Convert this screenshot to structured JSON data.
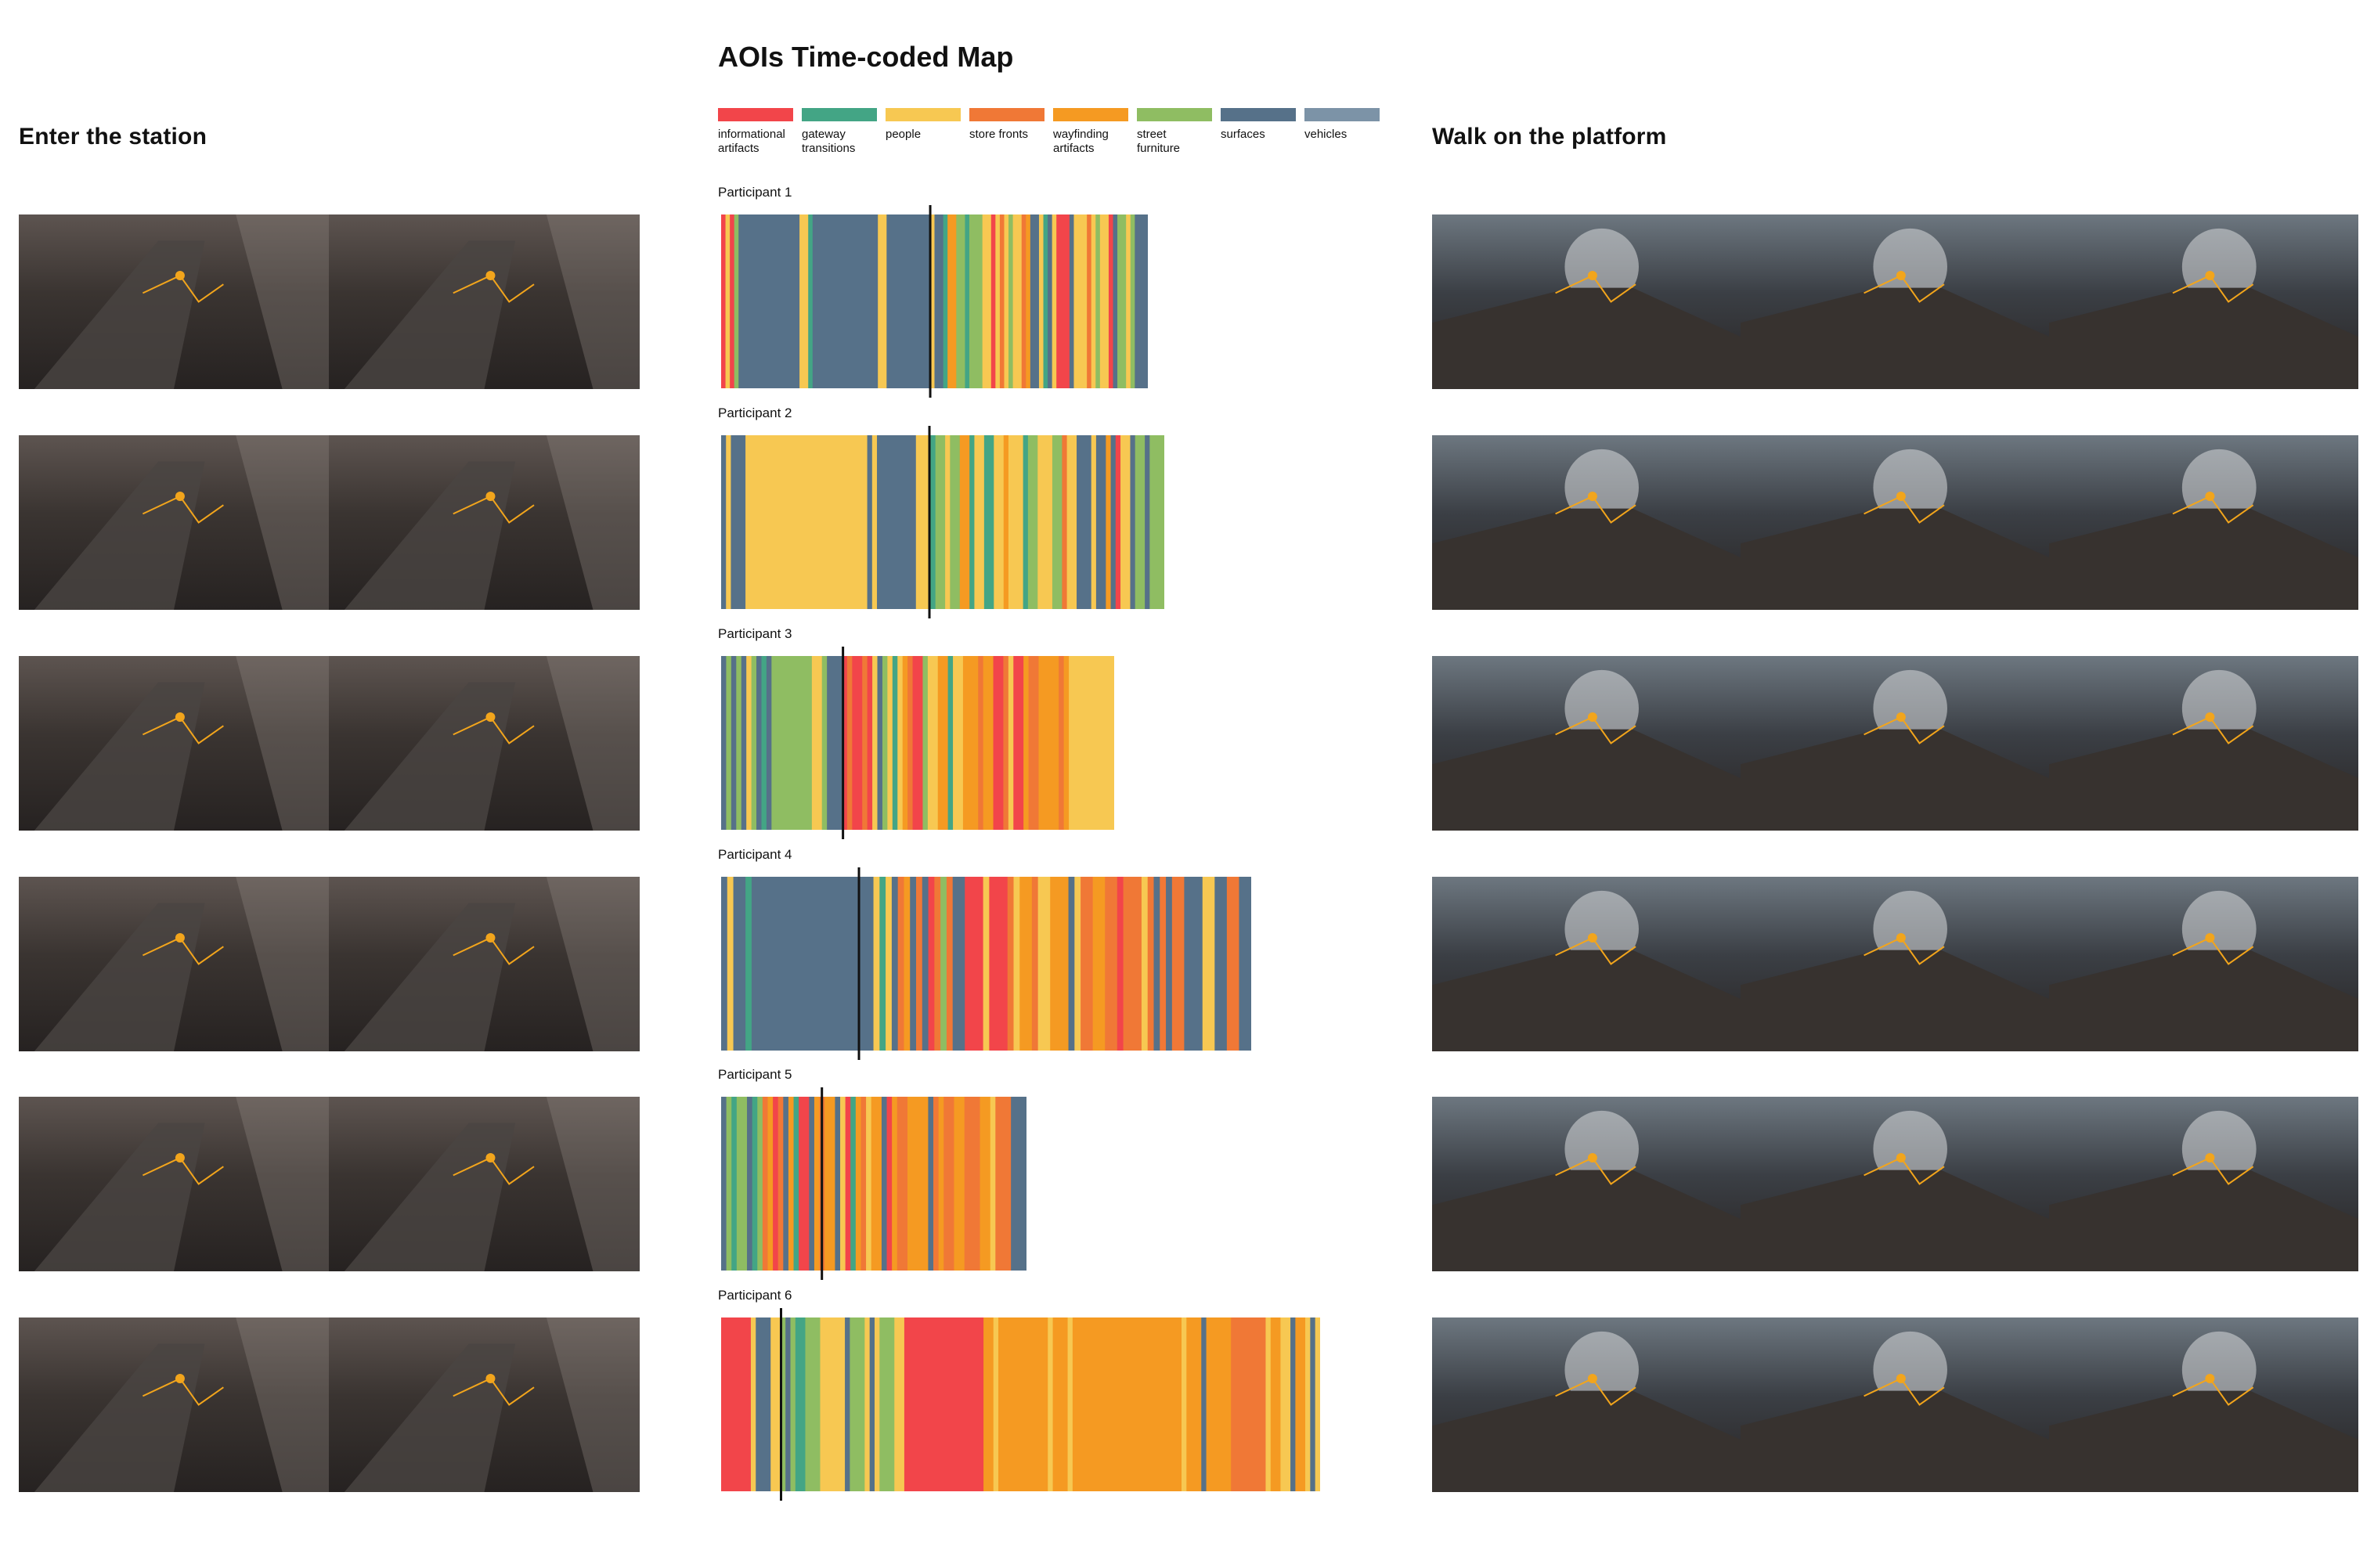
{
  "title": "AOIs Time-coded Map",
  "left_heading": "Enter the station",
  "right_heading": "Walk on the platform",
  "colors": {
    "IA": "#f2454a",
    "GT": "#43a585",
    "PE": "#f7c852",
    "SF": "#f07836",
    "WA": "#f59a22",
    "FU": "#8fbd62",
    "SU": "#567189",
    "VE": "#7c93a7"
  },
  "legend": [
    {
      "key": "IA",
      "label": "informational\nartifacts"
    },
    {
      "key": "GT",
      "label": "gateway\ntransitions"
    },
    {
      "key": "PE",
      "label": "people"
    },
    {
      "key": "SF",
      "label": "store fronts"
    },
    {
      "key": "WA",
      "label": "wayfinding\nartifacts"
    },
    {
      "key": "FU",
      "label": "street\nfurniture"
    },
    {
      "key": "SU",
      "label": "surfaces"
    },
    {
      "key": "VE",
      "label": "vehicles"
    }
  ],
  "chart_data": {
    "type": "bar",
    "title": "AOIs Time-coded Map",
    "series": [
      {
        "name": "Participant 1",
        "marker": 0.49,
        "sequence": "IA1 PE1 IA1 FU1 SU14 PE2 GT1 SU15 PE2 SU10 PE1 SU2 GT1 WA2 FU2 GT1 FU3 PE2 IA1 PE1 SF1 PE1 FU1 PE2 SF1 WA1 SU2 PE1 GT1 SU1 PE1 IA3 SU1 PE3 SF1 PE1 FU1 PE2 IA1 SU1 FU2 PE1 FU1 SU3"
      },
      {
        "name": "Participant 2",
        "marker": 0.47,
        "sequence": "SU1 PE1 SU3 PE25 SU1 PE1 SU8 PE3 GT1 FU2 PE1 FU2 WA2 GT1 PE2 GT2 PE2 WA1 PE3 GT1 FU2 PE3 FU2 SF1 PE2 SU3 PE1 SU2 WA1 SU1 IA1 PE2 SU1 FU2 SU1 FU3"
      },
      {
        "name": "Participant 3",
        "marker": 0.31,
        "sequence": "SU1 FU1 SU1 FU1 SU1 PE1 FU1 SU1 GT1 SU1 FU8 PE2 FU1 SU3 IA1 SF1 IA2 SF1 IA1 PE1 SU1 FU1 PE1 GT1 PE1 WA1 SF1 IA2 FU1 PE2 WA2 GT1 PE2 WA3 SF1 WA2 IA2 SF1 PE1 IA2 WA1 SF2 WA4 SF1 WA1 PE9"
      },
      {
        "name": "Participant 4",
        "marker": 0.26,
        "sequence": "SU1 PE1 SU2 GT1 SU20 PE1 GT1 PE1 SU1 SF1 WA1 SU1 SF1 SU1 IA1 SF1 FU1 SF1 SU2 IA3 PE1 IA3 SF1 PE1 WA2 SF1 PE2 WA3 SU1 PE1 SF2 WA2 SF2 IA1 SF3 PE1 SF1 SU1 SF1 SU1 SF2 SU3 PE2 SU2 SF2 SU2"
      },
      {
        "name": "Participant 5",
        "marker": 0.33,
        "sequence": "SU1 FU1 GT1 FU2 SU1 GT1 FU1 SF1 WA1 IA1 SF1 SU1 WA1 GT1 IA2 SU1 WA1 SF1 WA2 SU1 PE1 IA1 GT1 WA1 SF1 PE1 WA2 SU1 IA1 WA1 SF2 WA4 SU1 SF1 WA1 SF2 WA2 SF3 WA2 PE1 SF3 SU3"
      },
      {
        "name": "Participant 6",
        "marker": 0.1,
        "sequence": "IA6 PE1 SU3 PE2 FU1 SU1 FU1 GT2 FU3 PE5 SU1 FU3 PE1 SU1 PE1 FU3 PE2 IA16 WA2 PE1 WA10 PE1 WA3 PE1 WA22 PE1 WA3 SU1 WA5 SF7 PE1 WA2 PE2 SU1 WA2 PE1 SU1 PE1"
      }
    ]
  }
}
